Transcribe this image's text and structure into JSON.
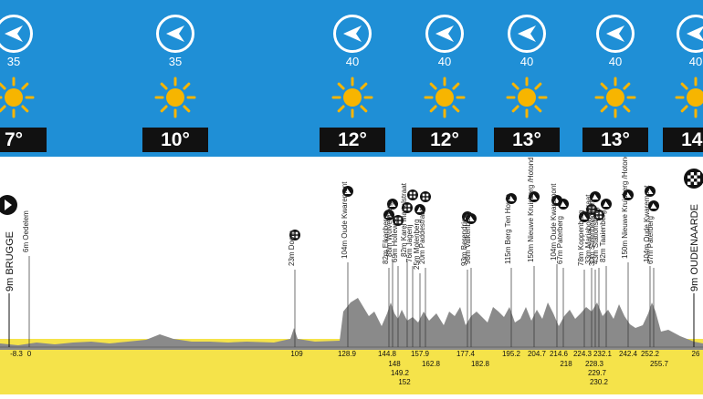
{
  "weather": [
    {
      "wind": "35",
      "temp": "7°",
      "wind_dir": "west",
      "icon": "sun-icon"
    },
    {
      "wind": "35",
      "temp": "10°",
      "wind_dir": "west",
      "icon": "sun-icon"
    },
    {
      "wind": "40",
      "temp": "12°",
      "wind_dir": "west",
      "icon": "sun-icon"
    },
    {
      "wind": "40",
      "temp": "12°",
      "wind_dir": "west",
      "icon": "sun-icon"
    },
    {
      "wind": "40",
      "temp": "13°",
      "wind_dir": "west",
      "icon": "sun-icon"
    },
    {
      "wind": "40",
      "temp": "13°",
      "wind_dir": "west",
      "icon": "sun-icon"
    },
    {
      "wind": "40",
      "temp": "14°",
      "wind_dir": "west",
      "icon": "sun-icon"
    }
  ],
  "profile": {
    "start": "9m BRUGGE",
    "finish": "9m OUDENAARDE",
    "climbs": [
      {
        "label": "6m Oedelem",
        "type": "none"
      },
      {
        "label": "23m Doom",
        "type": "cobbles"
      },
      {
        "label": "104m Oude Kwaremont",
        "type": "climb"
      },
      {
        "label": "82m Eikenberg",
        "type": "climb"
      },
      {
        "label": "88m Wolvenberg",
        "type": "climb"
      },
      {
        "label": "69m Holleweg",
        "type": "cobbles"
      },
      {
        "label": "82m Karel Martelstraat",
        "type": "cobbles"
      },
      {
        "label": "76m Jagerij",
        "type": "cobbles"
      },
      {
        "label": "25m Molenberg",
        "type": "climb"
      },
      {
        "label": "20m Paddestraat",
        "type": "cobbles"
      },
      {
        "label": "93m Berendries",
        "type": "climb"
      },
      {
        "label": "98m Valkenberg",
        "type": "climb"
      },
      {
        "label": "115m Berg Ten Houte",
        "type": "climb"
      },
      {
        "label": "150m Nieuwe Kruisberg /Hotond",
        "type": "climb"
      },
      {
        "label": "104m Oude Kwaremont",
        "type": "climb"
      },
      {
        "label": "67m Paterberg",
        "type": "climb"
      },
      {
        "label": "78m Koppenberg",
        "type": "climb"
      },
      {
        "label": "33m Mariaborrestraat",
        "type": "cobbles"
      },
      {
        "label": "30m Steenbeekdries",
        "type": "climb"
      },
      {
        "label": "43m Stationsberg",
        "type": "cobbles"
      },
      {
        "label": "82m Taaienberg",
        "type": "climb"
      },
      {
        "label": "150m Nieuwe Kruisberg /Hotond",
        "type": "climb"
      },
      {
        "label": "104m Oude Kwaremont",
        "type": "climb"
      },
      {
        "label": "67m Paterberg",
        "type": "climb"
      }
    ],
    "km_top": [
      "-8.3",
      "0",
      "109",
      "128.9",
      "144.8",
      "157.9",
      "177.4",
      "195.2",
      "204.7",
      "214.6",
      "224.3",
      "232.1",
      "242.4",
      "252.2",
      "26"
    ],
    "km_lower": [
      "148",
      "162.8",
      "182.8",
      "218",
      "228.3",
      "255.7"
    ],
    "km_lower2": [
      "149.2",
      "229.7"
    ],
    "km_lower3": [
      "152",
      "230.2"
    ]
  },
  "colors": {
    "sky": "#1f8fd6",
    "road": "#f5e34a",
    "terrain": "#8a8a8a"
  }
}
